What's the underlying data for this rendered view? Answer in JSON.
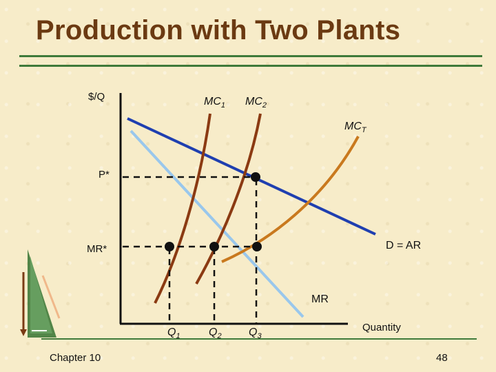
{
  "title": "Production with Two Plants",
  "footer": {
    "chapter": "Chapter 10",
    "page": "48"
  },
  "axes": {
    "y_label": "$/Q",
    "x_label": "Quantity"
  },
  "curves": {
    "mc1": {
      "name": "MC",
      "sub": "1",
      "color": "#8b3a12"
    },
    "mc2": {
      "name": "MC",
      "sub": "2",
      "color": "#8b3a12"
    },
    "mct": {
      "name": "MC",
      "sub": "T",
      "color": "#c9791e"
    },
    "demand": {
      "name": "D = AR",
      "color": "#1f3fb0"
    },
    "mr": {
      "name": "MR",
      "color": "#99c7ec"
    }
  },
  "levels": {
    "p_star": "P*",
    "mr_star": "MR*"
  },
  "quantities": [
    {
      "name": "Q",
      "sub": "1"
    },
    {
      "name": "Q",
      "sub": "2"
    },
    {
      "name": "Q",
      "sub": "3"
    }
  ]
}
